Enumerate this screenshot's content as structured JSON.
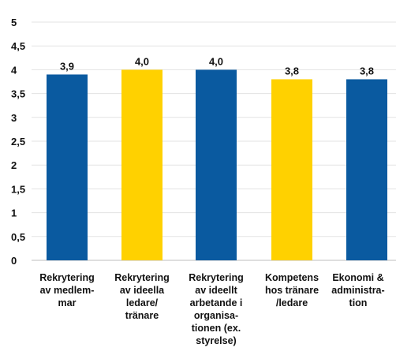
{
  "chart_data": {
    "type": "bar",
    "categories": [
      "Rekrytering av medlem-mar",
      "Rekrytering av ideella ledare/ tränare",
      "Rekrytering av ideellt arbetande i organisa-tionen (ex. styrelse)",
      "Kompetens hos tränare /ledare",
      "Ekonomi & administra-tion"
    ],
    "category_lines": [
      [
        "Rekrytering",
        "av medlem-",
        "mar"
      ],
      [
        "Rekrytering",
        "av ideella",
        "ledare/",
        "tränare"
      ],
      [
        "Rekrytering",
        "av ideellt",
        "arbetande i",
        "organisa-",
        "tionen (ex.",
        "styrelse)"
      ],
      [
        "Kompetens",
        "hos tränare",
        "/ledare"
      ],
      [
        "Ekonomi &",
        "administra-",
        "tion"
      ]
    ],
    "values": [
      3.9,
      4.0,
      4.0,
      3.8,
      3.8
    ],
    "value_labels": [
      "3,9",
      "4,0",
      "4,0",
      "3,8",
      "3,8"
    ],
    "bar_colors": [
      "#0a5aa0",
      "#ffd100",
      "#0a5aa0",
      "#ffd100",
      "#0a5aa0"
    ],
    "y_ticks": [
      0,
      0.5,
      1,
      1.5,
      2,
      2.5,
      3,
      3.5,
      4,
      4.5,
      5
    ],
    "y_tick_labels": [
      "0",
      "0,5",
      "1",
      "1,5",
      "2",
      "2,5",
      "3",
      "3,5",
      "4",
      "4,5",
      "5"
    ],
    "ylim": [
      0,
      5
    ],
    "grid": true,
    "title": "",
    "xlabel": "",
    "ylabel": ""
  }
}
